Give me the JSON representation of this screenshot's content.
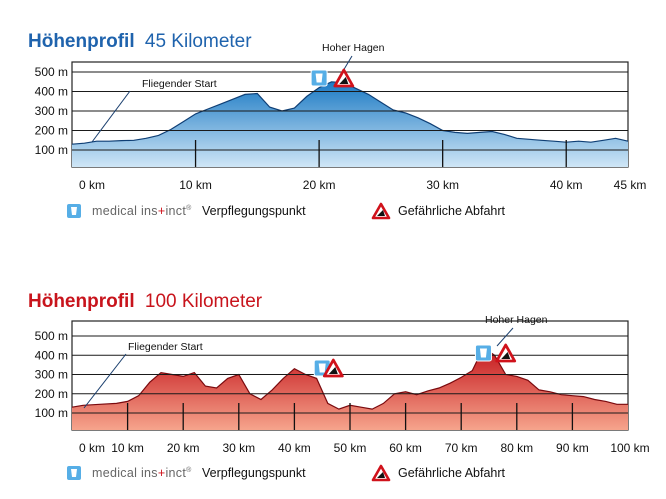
{
  "colors": {
    "blue_title": "#1f63ad",
    "red_title": "#c8141c",
    "blue_fill_top": "#1c7ac4",
    "blue_fill_bottom": "#cfe6f6",
    "red_fill_top": "#c4161c",
    "red_fill_bottom": "#f6a48c",
    "cup_icon": "#56aee6",
    "warning_red": "#d0121b"
  },
  "legend": {
    "brand_prefix": "medical ins",
    "brand_plus": "+",
    "brand_suffix": "inct",
    "brand_mark": "®",
    "food_label": "Verpflegungspunkt",
    "danger_label": "Gefährliche Abfahrt",
    "food_icon": "cup-icon",
    "danger_icon": "warning-triangle-icon"
  },
  "chart_data": [
    {
      "type": "area",
      "title_bold": "Höhenprofil",
      "title_rest": "45 Kilometer",
      "xlabel": "",
      "ylabel": "",
      "xlim": [
        0,
        45
      ],
      "ylim": [
        0,
        550
      ],
      "y_ticks": [
        100,
        200,
        300,
        400,
        500
      ],
      "y_tick_labels": [
        "100 m",
        "200 m",
        "300 m",
        "400 m",
        "500 m"
      ],
      "x_ticks": [
        0,
        10,
        20,
        30,
        40,
        45
      ],
      "x_tick_labels": [
        "0 km",
        "10 km",
        "20 km",
        "30 km",
        "40 km",
        "45 km"
      ],
      "grid": true,
      "x": [
        0,
        1,
        2,
        3,
        4,
        5,
        6,
        7,
        8,
        9,
        10,
        11,
        12,
        13,
        14,
        15,
        16,
        17,
        18,
        19,
        20,
        21,
        22,
        23,
        24,
        25,
        26,
        27,
        28,
        29,
        30,
        31,
        32,
        33,
        34,
        35,
        36,
        37,
        38,
        39,
        40,
        41,
        42,
        43,
        44,
        45
      ],
      "y": [
        130,
        135,
        145,
        145,
        148,
        150,
        160,
        175,
        205,
        245,
        285,
        310,
        335,
        360,
        385,
        390,
        320,
        300,
        315,
        375,
        420,
        450,
        445,
        415,
        385,
        345,
        305,
        290,
        265,
        235,
        200,
        190,
        185,
        190,
        195,
        180,
        160,
        155,
        150,
        145,
        140,
        145,
        140,
        150,
        160,
        145
      ],
      "annotations": [
        {
          "text": "Fliegender Start",
          "x": 0
        },
        {
          "text": "Hoher Hagen",
          "x": 21
        }
      ],
      "markers": [
        {
          "kind": "food",
          "icon": "cup-icon",
          "x": 20
        },
        {
          "kind": "danger",
          "icon": "warning-triangle-icon",
          "x": 22
        }
      ]
    },
    {
      "type": "area",
      "title_bold": "Höhenprofil",
      "title_rest": "100 Kilometer",
      "xlabel": "",
      "ylabel": "",
      "xlim": [
        0,
        100
      ],
      "ylim": [
        0,
        550
      ],
      "y_ticks": [
        100,
        200,
        300,
        400,
        500
      ],
      "y_tick_labels": [
        "100 m",
        "200 m",
        "300 m",
        "400 m",
        "500 m"
      ],
      "x_ticks": [
        0,
        10,
        20,
        30,
        40,
        50,
        60,
        70,
        80,
        90,
        100
      ],
      "x_tick_labels": [
        "0 km",
        "10 km",
        "20 km",
        "30 km",
        "40 km",
        "50 km",
        "60 km",
        "70 km",
        "80 km",
        "90 km",
        "100 km"
      ],
      "grid": true,
      "x": [
        0,
        2,
        5,
        8,
        10,
        12,
        14,
        16,
        18,
        20,
        22,
        24,
        26,
        28,
        30,
        32,
        34,
        36,
        38,
        40,
        42,
        44,
        46,
        48,
        50,
        52,
        54,
        56,
        58,
        60,
        62,
        64,
        66,
        68,
        70,
        72,
        74,
        76,
        78,
        80,
        82,
        84,
        86,
        88,
        90,
        92,
        94,
        96,
        98,
        100
      ],
      "y": [
        130,
        140,
        145,
        150,
        160,
        190,
        260,
        310,
        300,
        290,
        310,
        240,
        230,
        280,
        300,
        200,
        170,
        220,
        280,
        330,
        300,
        280,
        150,
        120,
        140,
        130,
        120,
        150,
        200,
        210,
        195,
        215,
        230,
        255,
        285,
        320,
        440,
        400,
        300,
        290,
        270,
        220,
        210,
        195,
        190,
        185,
        170,
        160,
        145,
        145
      ],
      "annotations": [
        {
          "text": "Fliegender Start",
          "x": 0
        },
        {
          "text": "Hoher Hagen",
          "x": 76
        }
      ],
      "markers": [
        {
          "kind": "food",
          "icon": "cup-icon",
          "x": 45
        },
        {
          "kind": "danger",
          "icon": "warning-triangle-icon",
          "x": 47
        },
        {
          "kind": "food",
          "icon": "cup-icon",
          "x": 74
        },
        {
          "kind": "danger",
          "icon": "warning-triangle-icon",
          "x": 78
        }
      ]
    }
  ]
}
